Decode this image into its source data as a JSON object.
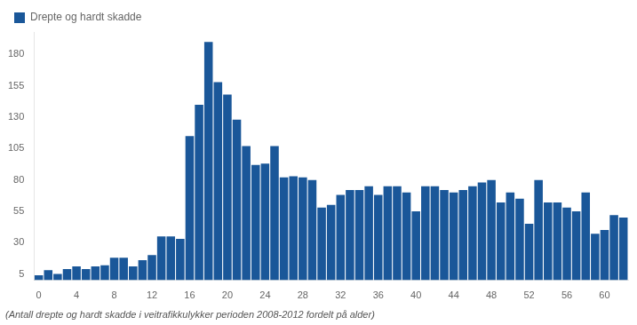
{
  "chart_data": {
    "type": "bar",
    "subtitle": "(Antall drepte og hardt skadde i veitrafikkulykker perioden 2008-2012 fordelt på alder)",
    "categories": [
      "0",
      null,
      null,
      null,
      "4",
      null,
      null,
      null,
      "8",
      null,
      null,
      null,
      "12",
      null,
      null,
      null,
      "16",
      null,
      null,
      null,
      "20",
      null,
      null,
      null,
      "24",
      null,
      null,
      null,
      "28",
      null,
      null,
      null,
      "32",
      null,
      null,
      null,
      "36",
      null,
      null,
      null,
      "40",
      null,
      null,
      null,
      "44",
      null,
      null,
      null,
      "48",
      null,
      null,
      null,
      "52",
      null,
      null,
      null,
      "56",
      null,
      null,
      null,
      "60",
      null,
      null
    ],
    "series": [
      {
        "name": "Drepte og hardt skadde",
        "color": "#1a5799",
        "values": [
          4,
          8,
          5,
          9,
          11,
          9,
          11,
          12,
          18,
          18,
          11,
          16,
          20,
          35,
          35,
          33,
          115,
          140,
          190,
          158,
          148,
          128,
          107,
          92,
          93,
          107,
          82,
          83,
          82,
          80,
          58,
          60,
          68,
          72,
          72,
          75,
          68,
          75,
          75,
          70,
          55,
          75,
          75,
          72,
          70,
          72,
          75,
          78,
          80,
          62,
          70,
          65,
          45,
          80,
          62,
          62,
          58,
          55,
          70,
          37,
          40,
          52,
          50
        ]
      }
    ],
    "ylim": [
      0,
      198
    ],
    "yticks": [
      5,
      30,
      55,
      80,
      105,
      130,
      155,
      180
    ],
    "grid": false,
    "legend": "upper left"
  }
}
